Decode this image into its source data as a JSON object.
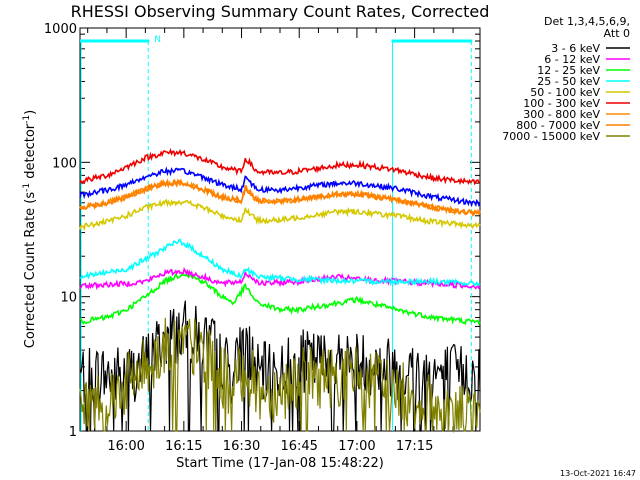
{
  "chart_data": {
    "type": "line",
    "title": "RHESSI Observing Summary Count Rates, Corrected",
    "xlabel": "Start Time (17-Jan-08 15:48:22)",
    "ylabel": "Corrected Count Rate (s⁻¹ detector⁻¹)",
    "ylabel_parts": {
      "main": "Corrected Count Rate (s",
      "sup1": "-1",
      "mid": " detector",
      "sup2": "-1",
      "end": ")"
    },
    "y_scale": "log",
    "ylim": [
      1,
      1000
    ],
    "y_ticks": [
      {
        "value": 1,
        "label": "1"
      },
      {
        "value": 10,
        "label": "10"
      },
      {
        "value": 100,
        "label": "100"
      },
      {
        "value": 1000,
        "label": "1000"
      }
    ],
    "x_unit": "minutes",
    "xlim": [
      "15:48",
      "17:32"
    ],
    "x_ticks": [
      "16:00",
      "16:15",
      "16:30",
      "16:45",
      "17:00",
      "17:15"
    ],
    "grid": false,
    "legend_header": [
      "Det 1,3,4,5,6,9,",
      "Att 0"
    ],
    "legend_placement": "right",
    "series": [
      {
        "name": "3 - 6 keV",
        "color": "#000000",
        "kind": "noisy-low",
        "points": [
          [
            "15:48",
            2.6
          ],
          [
            "16:00",
            2.6
          ],
          [
            "16:05",
            3.2
          ],
          [
            "16:10",
            5.0
          ],
          [
            "16:15",
            5.5
          ],
          [
            "16:22",
            4.5
          ],
          [
            "16:28",
            2.6
          ],
          [
            "16:31",
            5.0
          ],
          [
            "16:34",
            2.6
          ],
          [
            "16:40",
            2.8
          ],
          [
            "16:45",
            3.3
          ],
          [
            "17:00",
            3.3
          ],
          [
            "17:15",
            2.8
          ],
          [
            "17:30",
            2.6
          ]
        ]
      },
      {
        "name": "6 - 12 keV",
        "color": "#ff00ff",
        "points": [
          [
            "15:48",
            12
          ],
          [
            "16:00",
            12.5
          ],
          [
            "16:05",
            13
          ],
          [
            "16:10",
            15
          ],
          [
            "16:15",
            15.5
          ],
          [
            "16:20",
            14
          ],
          [
            "16:25",
            12.5
          ],
          [
            "16:30",
            13
          ],
          [
            "16:31",
            15
          ],
          [
            "16:35",
            12.5
          ],
          [
            "16:45",
            13
          ],
          [
            "16:55",
            14
          ],
          [
            "17:00",
            13.5
          ],
          [
            "17:10",
            13
          ],
          [
            "17:20",
            12.5
          ],
          [
            "17:30",
            12
          ]
        ]
      },
      {
        "name": "12 - 25 keV",
        "color": "#00ff00",
        "points": [
          [
            "15:48",
            6.5
          ],
          [
            "15:55",
            7
          ],
          [
            "16:00",
            8
          ],
          [
            "16:05",
            10
          ],
          [
            "16:10",
            13
          ],
          [
            "16:15",
            15
          ],
          [
            "16:20",
            13
          ],
          [
            "16:25",
            10
          ],
          [
            "16:28",
            9
          ],
          [
            "16:31",
            12
          ],
          [
            "16:34",
            9
          ],
          [
            "16:40",
            8
          ],
          [
            "16:45",
            8
          ],
          [
            "16:50",
            8.5
          ],
          [
            "17:00",
            9.5
          ],
          [
            "17:10",
            8
          ],
          [
            "17:20",
            7
          ],
          [
            "17:30",
            6.5
          ]
        ]
      },
      {
        "name": "25 - 50 keV",
        "color": "#00ffff",
        "points": [
          [
            "15:48",
            14
          ],
          [
            "16:00",
            16
          ],
          [
            "16:05",
            19
          ],
          [
            "16:10",
            23
          ],
          [
            "16:14",
            26
          ],
          [
            "16:18",
            22
          ],
          [
            "16:25",
            16
          ],
          [
            "16:30",
            14
          ],
          [
            "16:31",
            16
          ],
          [
            "16:35",
            14
          ],
          [
            "16:45",
            13.5
          ],
          [
            "17:00",
            13
          ],
          [
            "17:10",
            13
          ],
          [
            "17:20",
            13
          ],
          [
            "17:30",
            12.5
          ]
        ]
      },
      {
        "name": "50 - 100 keV",
        "color": "#ffff00",
        "draw_color": "#d4c800",
        "points": [
          [
            "15:48",
            33
          ],
          [
            "15:55",
            36
          ],
          [
            "16:00",
            40
          ],
          [
            "16:05",
            46
          ],
          [
            "16:10",
            50
          ],
          [
            "16:15",
            51
          ],
          [
            "16:20",
            46
          ],
          [
            "16:25",
            40
          ],
          [
            "16:30",
            37
          ],
          [
            "16:31",
            45
          ],
          [
            "16:34",
            37
          ],
          [
            "16:40",
            37
          ],
          [
            "16:45",
            39
          ],
          [
            "16:55",
            43
          ],
          [
            "17:00",
            43
          ],
          [
            "17:10",
            40
          ],
          [
            "17:20",
            36
          ],
          [
            "17:30",
            34
          ]
        ]
      },
      {
        "name": "100 - 300 keV",
        "color": "#ff0000",
        "draw_color": "#ee0000",
        "points": [
          [
            "15:48",
            72
          ],
          [
            "15:55",
            80
          ],
          [
            "16:00",
            92
          ],
          [
            "16:05",
            108
          ],
          [
            "16:10",
            118
          ],
          [
            "16:15",
            118
          ],
          [
            "16:20",
            105
          ],
          [
            "16:25",
            92
          ],
          [
            "16:30",
            85
          ],
          [
            "16:31",
            108
          ],
          [
            "16:34",
            85
          ],
          [
            "16:40",
            83
          ],
          [
            "16:45",
            86
          ],
          [
            "16:55",
            95
          ],
          [
            "17:00",
            96
          ],
          [
            "17:10",
            88
          ],
          [
            "17:20",
            76
          ],
          [
            "17:30",
            71
          ]
        ]
      },
      {
        "name": "300 - 800 keV",
        "color": "#ff8c00",
        "points": [
          [
            "15:48",
            46
          ],
          [
            "15:55",
            50
          ],
          [
            "16:00",
            55
          ],
          [
            "16:05",
            63
          ],
          [
            "16:10",
            70
          ],
          [
            "16:15",
            70
          ],
          [
            "16:20",
            63
          ],
          [
            "16:25",
            55
          ],
          [
            "16:30",
            52
          ],
          [
            "16:31",
            65
          ],
          [
            "16:34",
            52
          ],
          [
            "16:40",
            51
          ],
          [
            "16:45",
            53
          ],
          [
            "16:55",
            58
          ],
          [
            "17:00",
            58
          ],
          [
            "17:10",
            53
          ],
          [
            "17:20",
            46
          ],
          [
            "17:30",
            42
          ]
        ]
      },
      {
        "name": "800 - 7000 keV",
        "color": "#ff8c00",
        "draw_color": "#ff7f00",
        "points": [
          [
            "15:48",
            46
          ],
          [
            "15:55",
            50
          ],
          [
            "16:00",
            55
          ],
          [
            "16:05",
            63
          ],
          [
            "16:10",
            70
          ],
          [
            "16:15",
            70
          ],
          [
            "16:20",
            63
          ],
          [
            "16:25",
            55
          ],
          [
            "16:30",
            52
          ],
          [
            "16:31",
            65
          ],
          [
            "16:34",
            52
          ],
          [
            "16:40",
            51
          ],
          [
            "16:45",
            53
          ],
          [
            "16:55",
            58
          ],
          [
            "17:00",
            58
          ],
          [
            "17:10",
            53
          ],
          [
            "17:20",
            46
          ],
          [
            "17:30",
            42
          ]
        ]
      },
      {
        "name": "7000 - 15000 keV",
        "color": "#808000",
        "kind": "noisy-low",
        "points": [
          [
            "15:48",
            1.5
          ],
          [
            "15:55",
            1.8
          ],
          [
            "16:00",
            2.2
          ],
          [
            "16:05",
            3.0
          ],
          [
            "16:10",
            4.2
          ],
          [
            "16:15",
            4.5
          ],
          [
            "16:20",
            3.8
          ],
          [
            "16:25",
            2.6
          ],
          [
            "16:28",
            2.0
          ],
          [
            "16:31",
            3.0
          ],
          [
            "16:34",
            2.0
          ],
          [
            "16:40",
            2.0
          ],
          [
            "16:45",
            2.5
          ],
          [
            "17:00",
            2.6
          ],
          [
            "17:10",
            2.0
          ],
          [
            "17:20",
            1.5
          ],
          [
            "17:30",
            1.3
          ]
        ]
      }
    ],
    "blue_series_note_free": true,
    "extra_series": [
      {
        "color": "#0000ff",
        "points": [
          [
            "15:48",
            57
          ],
          [
            "15:55",
            62
          ],
          [
            "16:00",
            68
          ],
          [
            "16:05",
            78
          ],
          [
            "16:10",
            86
          ],
          [
            "16:15",
            86
          ],
          [
            "16:20",
            78
          ],
          [
            "16:25",
            68
          ],
          [
            "16:30",
            63
          ],
          [
            "16:31",
            78
          ],
          [
            "16:34",
            63
          ],
          [
            "16:40",
            62
          ],
          [
            "16:45",
            65
          ],
          [
            "16:55",
            70
          ],
          [
            "17:00",
            70
          ],
          [
            "17:10",
            64
          ],
          [
            "17:20",
            55
          ],
          [
            "17:30",
            50
          ]
        ]
      }
    ],
    "spacecraft_flags": [
      {
        "type": "night",
        "color": "#00ffff",
        "start": "15:48",
        "end": "16:06",
        "marker": "N"
      },
      {
        "type": "night",
        "color": "#00ffff",
        "start": "17:09",
        "end": "17:30"
      }
    ],
    "timestamp": "13-Oct-2021 16:47"
  }
}
